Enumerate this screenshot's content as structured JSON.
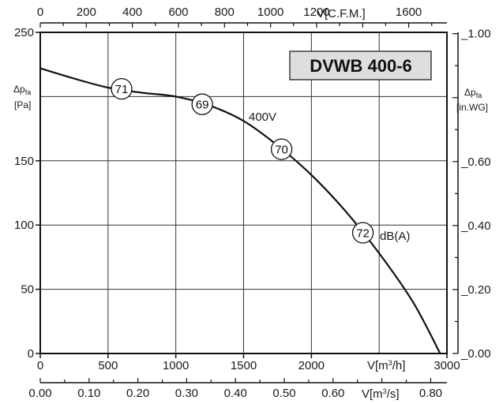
{
  "chart_data": {
    "type": "line",
    "title": "DVWB 400-6",
    "series": [
      {
        "name": "400V",
        "x_unit": "V[m³/h]",
        "y_unit": "Δp_fa [Pa]",
        "points": [
          [
            0,
            222
          ],
          [
            250,
            214
          ],
          [
            500,
            207
          ],
          [
            750,
            203
          ],
          [
            1000,
            200
          ],
          [
            1250,
            193
          ],
          [
            1500,
            181
          ],
          [
            1750,
            162
          ],
          [
            2000,
            139
          ],
          [
            2250,
            111
          ],
          [
            2500,
            78
          ],
          [
            2750,
            40
          ],
          [
            2950,
            0
          ]
        ]
      }
    ],
    "db_markers": [
      {
        "x": 600,
        "y": 206,
        "label": "71"
      },
      {
        "x": 1195,
        "y": 194,
        "label": "69"
      },
      {
        "x": 1780,
        "y": 159,
        "label": "70"
      },
      {
        "x": 2380,
        "y": 94,
        "label": "72"
      }
    ],
    "annotations": {
      "voltage": "400V",
      "db_unit": "dB(A)"
    },
    "axes": {
      "bottom": {
        "label": "V[m³/h]",
        "range": [
          0,
          3000
        ],
        "ticks": [
          "0",
          "500",
          "1000",
          "1500",
          "2000",
          "3000"
        ],
        "tick_values": [
          0,
          500,
          1000,
          1500,
          2000,
          3000
        ]
      },
      "bottom2": {
        "label": "V[m³/s]",
        "range": [
          0,
          0.8333
        ],
        "ticks": [
          "0.00",
          "0.10",
          "0.20",
          "0.30",
          "0.40",
          "0.50",
          "0.60",
          "0.80"
        ],
        "tick_values": [
          0,
          0.1,
          0.2,
          0.3,
          0.4,
          0.5,
          0.6,
          0.8
        ]
      },
      "top": {
        "label": "V[C.F.M.]",
        "range": [
          0,
          1766
        ],
        "ticks": [
          "0",
          "200",
          "400",
          "600",
          "800",
          "1000",
          "1200",
          "1600"
        ],
        "tick_values": [
          0,
          200,
          400,
          600,
          800,
          1000,
          1200,
          1600
        ]
      },
      "left": {
        "label_main": "Δp",
        "label_sub": "fa",
        "label_unit": "[Pa]",
        "range": [
          0,
          250
        ],
        "ticks": [
          "0",
          "50",
          "100",
          "150",
          "250"
        ],
        "tick_values": [
          0,
          50,
          100,
          150,
          250
        ]
      },
      "right": {
        "label_main": "Δp",
        "label_sub": "fa",
        "label_unit": "[in.WG]",
        "range": [
          0,
          1.004
        ],
        "ticks": [
          "0.00",
          "0.20",
          "0.40",
          "0.60",
          "1.00"
        ],
        "tick_values": [
          0,
          0.2,
          0.4,
          0.6,
          1.0
        ]
      }
    },
    "grid": true
  }
}
